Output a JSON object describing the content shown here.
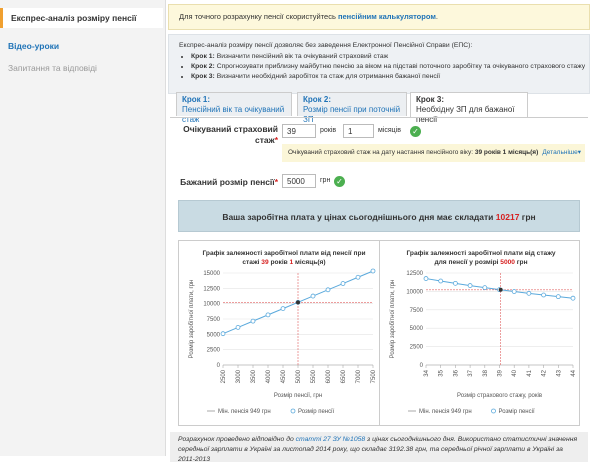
{
  "sidebar": [
    "Експрес-аналіз розміру пенсії",
    "Відео-уроки",
    "Запитання та відповіді"
  ],
  "notice": {
    "text": "Для точного розрахунку пенсії скористуйтесь ",
    "link": "пенсійним калькулятором",
    "end": "."
  },
  "intro": {
    "text": "Експрес-аналіз розміру пенсії дозволяє без заведення Електронної Пенсійної Справи (ЕПС):",
    "steps": [
      {
        "label": "Крок 1:",
        "text": "Визначити пенсійний вік та очікуваний страховий стаж"
      },
      {
        "label": "Крок 2:",
        "text": "Спрогнозувати приблизну майбутню пенсію за віком на підставі поточного заробітку та очікуваного страхового стажу"
      },
      {
        "label": "Крок 3:",
        "text": "Визначити необхідний заробіток та стаж для отримання бажаної пенсії"
      }
    ]
  },
  "tabs": [
    {
      "label": "Крок 1:",
      "text": "Пенсійний вік та очікуваний стаж"
    },
    {
      "label": "Крок 2:",
      "text": "Розмір пенсії при поточній ЗП"
    },
    {
      "label": "Крок 3:",
      "text": "Необхідну ЗП для бажаної пенсії"
    }
  ],
  "form": {
    "stazh_label": "Очікуваний страховий стаж",
    "required": "*",
    "years": 39,
    "years_unit": "років",
    "months": 1,
    "months_unit": "місяців",
    "info": "Очікуваний страховий стаж на дату настання пенсійного віку: ",
    "info_value": "39 років 1 місяць(я)",
    "details": "Детальніше▾",
    "pension_label": "Бажаний розмір пенсії",
    "pension": 5000,
    "pension_unit": "грн"
  },
  "result": {
    "text": "Ваша заробітна плата у цінах сьогоднішнього дня має складати ",
    "value": 10217,
    "unit": "грн"
  },
  "chart_data": [
    {
      "type": "line",
      "title": [
        "Графік залежності заробітної плати від пенсії при стажі ",
        "39",
        " років ",
        "1",
        " місяць(я)"
      ],
      "xlabel": "Розмір пенсії, грн",
      "ylabel": "Розмір заробітної плати, грн",
      "x": [
        2500,
        3000,
        3500,
        4000,
        4500,
        5000,
        5500,
        6000,
        6500,
        7000,
        7500
      ],
      "series": [
        {
          "name": "Розмір пенсії",
          "color": "#5aa9dc",
          "values": [
            5109,
            6130,
            7152,
            8174,
            9195,
            10217,
            11239,
            12260,
            13282,
            14304,
            15326
          ]
        }
      ],
      "reference": {
        "name": "Мін. пенсія 949 грн",
        "color": "#aaaaaa"
      },
      "marker": {
        "x": 5000,
        "y": 10217,
        "color": "#e06060"
      },
      "xlim": [
        2500,
        7500
      ],
      "ylim": [
        0,
        15000
      ],
      "xticks": [
        2500,
        3000,
        3500,
        4000,
        4500,
        5000,
        5500,
        6000,
        6500,
        7000,
        7500
      ],
      "yticks": [
        0,
        2500,
        5000,
        7500,
        10000,
        12500,
        15000
      ],
      "grid": true
    },
    {
      "type": "line",
      "title": [
        "Графік залежності заробітної плати від стажу для пенсії у розмірі ",
        "5000",
        " грн"
      ],
      "xlabel": "Розмір страхового стажу, років",
      "ylabel": "Розмір заробітної плати, грн",
      "x": [
        34,
        35,
        36,
        37,
        38,
        39,
        40,
        41,
        42,
        43,
        44
      ],
      "series": [
        {
          "name": "Розмір пенсії",
          "color": "#5aa9dc",
          "values": [
            11744,
            11409,
            11092,
            10792,
            10508,
            10239,
            9983,
            9739,
            9507,
            9286,
            9075
          ]
        }
      ],
      "reference": {
        "name": "Мін. пенсія 949 грн",
        "color": "#aaaaaa"
      },
      "marker": {
        "x": 39.08,
        "y": 10217,
        "color": "#e06060"
      },
      "xlim": [
        34,
        44
      ],
      "ylim": [
        0,
        12500
      ],
      "xticks": [
        34,
        35,
        36,
        37,
        38,
        39,
        40,
        41,
        42,
        43,
        44
      ],
      "yticks": [
        0,
        2500,
        5000,
        7500,
        10000,
        12500
      ],
      "grid": true
    }
  ],
  "footer": {
    "text": "Розрахунок проведено відповідно до ",
    "link": "статті 27 ЗУ №1058",
    "rest": " з цінах сьогоднішнього дня. Використано статистичні значення середньої зарплати в Україні за листопад 2014 року, що складає 3192.38 грн, та середньої річної зарплати в Україні за 2011-2013"
  }
}
